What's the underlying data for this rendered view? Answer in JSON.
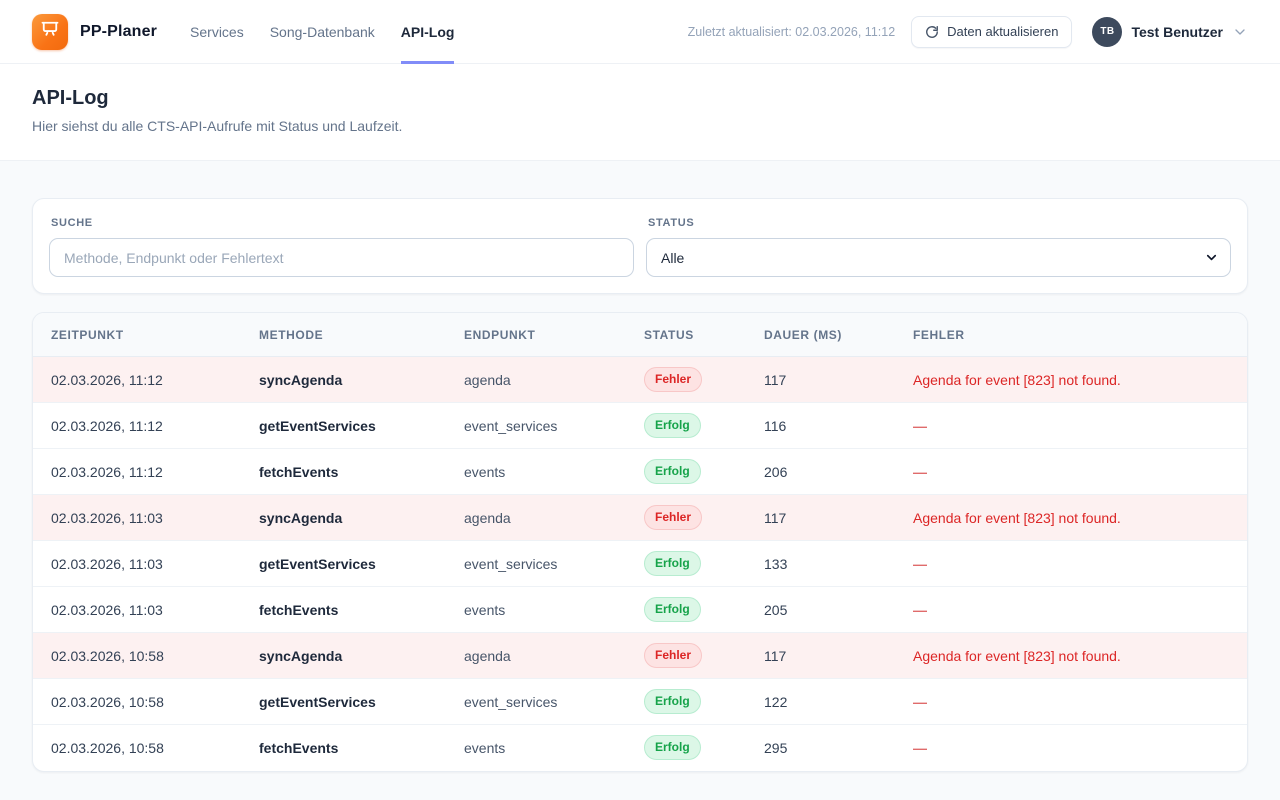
{
  "brand": {
    "name": "PP-Planer"
  },
  "nav": [
    {
      "label": "Services",
      "active": false
    },
    {
      "label": "Song-Datenbank",
      "active": false
    },
    {
      "label": "API-Log",
      "active": true
    }
  ],
  "topbar": {
    "last_updated": "Zuletzt aktualisiert: 02.03.2026, 11:12",
    "refresh_label": "Daten aktualisieren",
    "user": {
      "initials": "TB",
      "name": "Test Benutzer"
    }
  },
  "page": {
    "title": "API-Log",
    "subtitle": "Hier siehst du alle CTS-API-Aufrufe mit Status und Laufzeit."
  },
  "filters": {
    "search": {
      "label": "SUCHE",
      "placeholder": "Methode, Endpunkt oder Fehlertext",
      "value": ""
    },
    "status": {
      "label": "STATUS",
      "selected": "Alle"
    }
  },
  "table": {
    "columns": [
      "ZEITPUNKT",
      "METHODE",
      "ENDPUNKT",
      "STATUS",
      "DAUER (MS)",
      "FEHLER"
    ],
    "no_error_placeholder": "—",
    "status_labels": {
      "success": "Erfolg",
      "error": "Fehler"
    },
    "rows": [
      {
        "timestamp": "02.03.2026, 11:12",
        "method": "syncAgenda",
        "endpoint": "agenda",
        "status": "error",
        "duration": "117",
        "error": "Agenda for event [823] not found."
      },
      {
        "timestamp": "02.03.2026, 11:12",
        "method": "getEventServices",
        "endpoint": "event_services",
        "status": "success",
        "duration": "116",
        "error": ""
      },
      {
        "timestamp": "02.03.2026, 11:12",
        "method": "fetchEvents",
        "endpoint": "events",
        "status": "success",
        "duration": "206",
        "error": ""
      },
      {
        "timestamp": "02.03.2026, 11:03",
        "method": "syncAgenda",
        "endpoint": "agenda",
        "status": "error",
        "duration": "117",
        "error": "Agenda for event [823] not found."
      },
      {
        "timestamp": "02.03.2026, 11:03",
        "method": "getEventServices",
        "endpoint": "event_services",
        "status": "success",
        "duration": "133",
        "error": ""
      },
      {
        "timestamp": "02.03.2026, 11:03",
        "method": "fetchEvents",
        "endpoint": "events",
        "status": "success",
        "duration": "205",
        "error": ""
      },
      {
        "timestamp": "02.03.2026, 10:58",
        "method": "syncAgenda",
        "endpoint": "agenda",
        "status": "error",
        "duration": "117",
        "error": "Agenda for event [823] not found."
      },
      {
        "timestamp": "02.03.2026, 10:58",
        "method": "getEventServices",
        "endpoint": "event_services",
        "status": "success",
        "duration": "122",
        "error": ""
      },
      {
        "timestamp": "02.03.2026, 10:58",
        "method": "fetchEvents",
        "endpoint": "events",
        "status": "success",
        "duration": "295",
        "error": ""
      }
    ]
  },
  "colors": {
    "accent_underline": "#818cf8",
    "logo_orange": "#f97316",
    "success_text": "#16a34a",
    "error_text": "#dc2626",
    "error_row_bg": "#fdf1f1",
    "page_bg": "#f8fafc"
  }
}
